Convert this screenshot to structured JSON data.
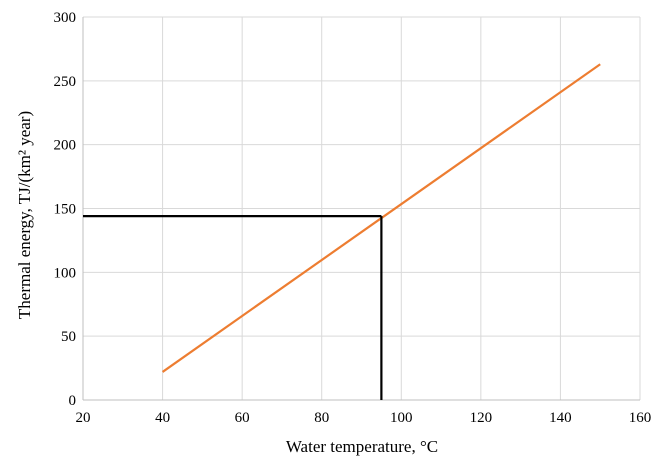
{
  "chart_data": {
    "type": "line",
    "title": "",
    "xlabel": "Water temperature, °C",
    "ylabel": "Thermal energy, TJ/(km² year)",
    "xlim": [
      20,
      160
    ],
    "ylim": [
      0,
      300
    ],
    "xticks": [
      20,
      40,
      60,
      80,
      100,
      120,
      140,
      160
    ],
    "yticks": [
      0,
      50,
      100,
      150,
      200,
      250,
      300
    ],
    "grid": true,
    "legend": "none",
    "series": [
      {
        "x": [
          40,
          150
        ],
        "y": [
          22,
          263
        ],
        "color": "#ed7d31"
      }
    ],
    "reference_lines": {
      "x": 95,
      "y": 144,
      "color": "#000000"
    }
  }
}
